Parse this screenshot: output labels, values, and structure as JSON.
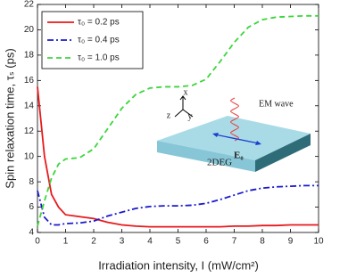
{
  "chart_data": {
    "type": "line",
    "xlabel": "Irradiation intensity, I  (mW/cm²)",
    "ylabel": "Spin relaxation time, τₛ (ps)",
    "x": [
      0,
      0.25,
      0.5,
      0.75,
      1,
      1.5,
      2,
      2.5,
      3,
      3.5,
      4,
      4.5,
      5,
      5.5,
      6,
      6.5,
      7,
      7.5,
      8,
      8.5,
      9,
      9.5,
      10
    ],
    "series": [
      {
        "name": "τ₀ = 0.2 ps",
        "color": "#e8191c",
        "dash": "",
        "values": [
          15.5,
          10,
          7,
          6,
          5.4,
          5.25,
          5.1,
          4.8,
          4.6,
          4.5,
          4.45,
          4.45,
          4.45,
          4.45,
          4.45,
          4.45,
          4.5,
          4.5,
          4.55,
          4.55,
          4.6,
          4.6,
          4.6
        ]
      },
      {
        "name": "τ₀ = 0.4 ps",
        "color": "#1a1acc",
        "dash": "7 3 2 3",
        "values": [
          7.3,
          5.2,
          4.6,
          4.6,
          4.7,
          4.75,
          4.9,
          5.3,
          5.6,
          5.9,
          6.05,
          6.1,
          6.1,
          6.15,
          6.3,
          6.6,
          6.95,
          7.3,
          7.5,
          7.6,
          7.65,
          7.7,
          7.7
        ]
      },
      {
        "name": "τ₀ = 1.0 ps",
        "color": "#3bd63b",
        "dash": "6 4",
        "values": [
          4.5,
          6.5,
          8.3,
          9.4,
          9.8,
          9.9,
          10.6,
          12.2,
          13.8,
          14.9,
          15.4,
          15.5,
          15.5,
          15.6,
          16.1,
          17.5,
          19,
          20.2,
          20.8,
          21,
          21.05,
          21.1,
          21.1
        ]
      }
    ],
    "xlim": [
      0,
      10
    ],
    "xticks": [
      0,
      1,
      2,
      3,
      4,
      5,
      6,
      7,
      8,
      9,
      10
    ],
    "ylim": [
      4,
      22
    ],
    "yticks": [
      4,
      6,
      8,
      10,
      12,
      14,
      16,
      18,
      20,
      22
    ],
    "legend": "upper left",
    "annotations": [
      "x",
      "y",
      "z",
      "EM wave",
      "2DEG",
      "E₀"
    ]
  }
}
